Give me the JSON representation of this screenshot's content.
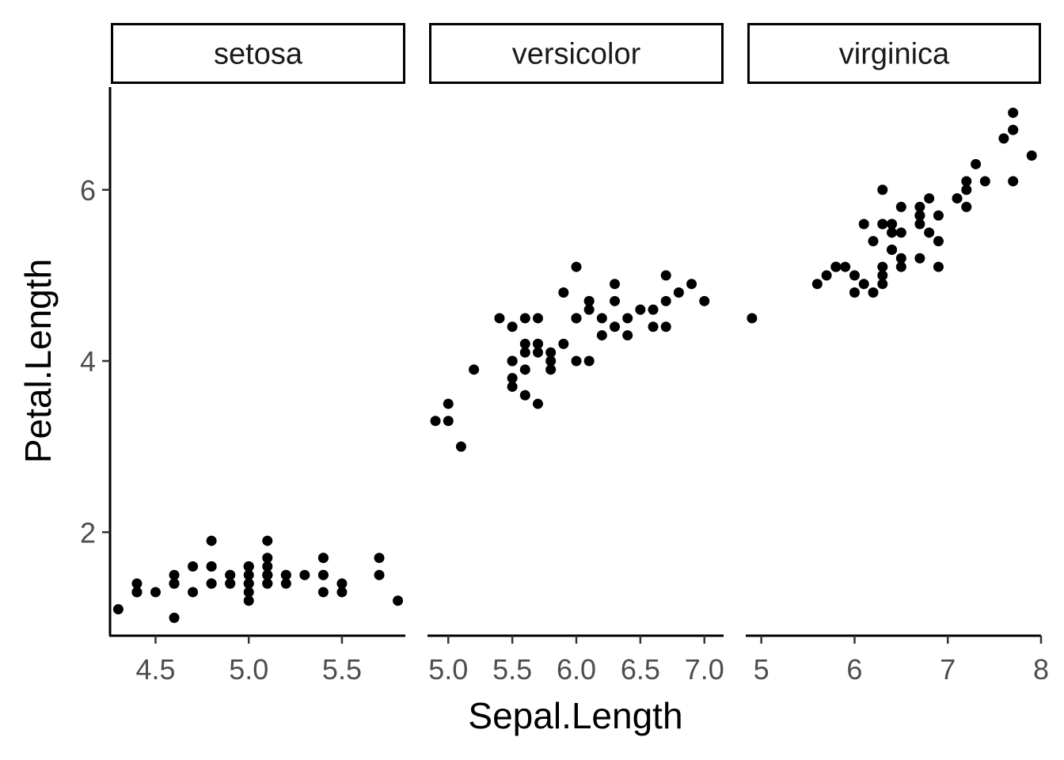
{
  "chart_data": {
    "type": "scatter",
    "xlabel": "Sepal.Length",
    "ylabel": "Petal.Length",
    "ylim": [
      0.8,
      7.2
    ],
    "y_ticks": [
      2,
      4,
      6
    ],
    "point_color": "#000000",
    "facets": [
      {
        "name": "setosa",
        "xlim": [
          4.26,
          5.84
        ],
        "x_ticks": [
          "4.5",
          "5.0",
          "5.5"
        ],
        "points": [
          [
            5.1,
            1.4
          ],
          [
            4.9,
            1.4
          ],
          [
            4.7,
            1.3
          ],
          [
            4.6,
            1.5
          ],
          [
            5.0,
            1.4
          ],
          [
            5.4,
            1.7
          ],
          [
            4.6,
            1.4
          ],
          [
            5.0,
            1.5
          ],
          [
            4.4,
            1.4
          ],
          [
            4.9,
            1.5
          ],
          [
            5.4,
            1.5
          ],
          [
            4.8,
            1.6
          ],
          [
            4.8,
            1.4
          ],
          [
            4.3,
            1.1
          ],
          [
            5.8,
            1.2
          ],
          [
            5.7,
            1.5
          ],
          [
            5.4,
            1.3
          ],
          [
            5.1,
            1.4
          ],
          [
            5.7,
            1.7
          ],
          [
            5.1,
            1.5
          ],
          [
            5.4,
            1.7
          ],
          [
            5.1,
            1.5
          ],
          [
            4.6,
            1.0
          ],
          [
            5.1,
            1.7
          ],
          [
            4.8,
            1.9
          ],
          [
            5.0,
            1.6
          ],
          [
            5.0,
            1.6
          ],
          [
            5.2,
            1.5
          ],
          [
            5.2,
            1.4
          ],
          [
            4.7,
            1.6
          ],
          [
            4.8,
            1.6
          ],
          [
            5.4,
            1.5
          ],
          [
            5.2,
            1.5
          ],
          [
            5.5,
            1.4
          ],
          [
            4.9,
            1.5
          ],
          [
            5.0,
            1.2
          ],
          [
            5.5,
            1.3
          ],
          [
            4.9,
            1.4
          ],
          [
            4.4,
            1.3
          ],
          [
            5.1,
            1.5
          ],
          [
            5.0,
            1.3
          ],
          [
            4.5,
            1.3
          ],
          [
            4.4,
            1.3
          ],
          [
            5.0,
            1.6
          ],
          [
            5.1,
            1.9
          ],
          [
            4.8,
            1.4
          ],
          [
            5.1,
            1.6
          ],
          [
            4.6,
            1.4
          ],
          [
            5.3,
            1.5
          ],
          [
            5.0,
            1.4
          ]
        ]
      },
      {
        "name": "versicolor",
        "xlim": [
          4.85,
          7.15
        ],
        "x_ticks": [
          "5.0",
          "5.5",
          "6.0",
          "6.5",
          "7.0"
        ],
        "points": [
          [
            7.0,
            4.7
          ],
          [
            6.4,
            4.5
          ],
          [
            6.9,
            4.9
          ],
          [
            5.5,
            4.0
          ],
          [
            6.5,
            4.6
          ],
          [
            5.7,
            4.5
          ],
          [
            6.3,
            4.7
          ],
          [
            4.9,
            3.3
          ],
          [
            6.6,
            4.6
          ],
          [
            5.2,
            3.9
          ],
          [
            5.0,
            3.5
          ],
          [
            5.9,
            4.2
          ],
          [
            6.0,
            4.0
          ],
          [
            6.1,
            4.7
          ],
          [
            5.6,
            3.6
          ],
          [
            6.7,
            4.4
          ],
          [
            5.6,
            4.5
          ],
          [
            5.8,
            4.1
          ],
          [
            6.2,
            4.5
          ],
          [
            5.6,
            3.9
          ],
          [
            5.9,
            4.8
          ],
          [
            6.1,
            4.0
          ],
          [
            6.3,
            4.9
          ],
          [
            6.1,
            4.7
          ],
          [
            6.4,
            4.3
          ],
          [
            6.6,
            4.4
          ],
          [
            6.8,
            4.8
          ],
          [
            6.7,
            5.0
          ],
          [
            6.0,
            4.5
          ],
          [
            5.7,
            3.5
          ],
          [
            5.5,
            3.8
          ],
          [
            5.5,
            3.7
          ],
          [
            5.8,
            3.9
          ],
          [
            6.0,
            5.1
          ],
          [
            5.4,
            4.5
          ],
          [
            6.0,
            4.5
          ],
          [
            6.7,
            4.7
          ],
          [
            6.3,
            4.4
          ],
          [
            5.6,
            4.1
          ],
          [
            5.5,
            4.0
          ],
          [
            5.5,
            4.4
          ],
          [
            6.1,
            4.6
          ],
          [
            5.8,
            4.0
          ],
          [
            5.0,
            3.3
          ],
          [
            5.6,
            4.2
          ],
          [
            5.7,
            4.2
          ],
          [
            5.7,
            4.2
          ],
          [
            6.2,
            4.3
          ],
          [
            5.1,
            3.0
          ],
          [
            5.7,
            4.1
          ]
        ]
      },
      {
        "name": "virginica",
        "xlim": [
          4.85,
          8.0
        ],
        "x_ticks": [
          "5",
          "6",
          "7",
          "8"
        ],
        "points": [
          [
            6.3,
            6.0
          ],
          [
            5.8,
            5.1
          ],
          [
            7.1,
            5.9
          ],
          [
            6.3,
            5.6
          ],
          [
            6.5,
            5.8
          ],
          [
            7.6,
            6.6
          ],
          [
            4.9,
            4.5
          ],
          [
            7.3,
            6.3
          ],
          [
            6.7,
            5.8
          ],
          [
            7.2,
            6.1
          ],
          [
            6.5,
            5.1
          ],
          [
            6.4,
            5.3
          ],
          [
            6.8,
            5.5
          ],
          [
            5.7,
            5.0
          ],
          [
            5.8,
            5.1
          ],
          [
            6.4,
            5.3
          ],
          [
            6.5,
            5.5
          ],
          [
            7.7,
            6.7
          ],
          [
            7.7,
            6.9
          ],
          [
            6.0,
            5.0
          ],
          [
            6.9,
            5.7
          ],
          [
            5.6,
            4.9
          ],
          [
            7.7,
            6.7
          ],
          [
            6.3,
            4.9
          ],
          [
            6.7,
            5.7
          ],
          [
            7.2,
            6.0
          ],
          [
            6.2,
            4.8
          ],
          [
            6.1,
            4.9
          ],
          [
            6.4,
            5.6
          ],
          [
            7.2,
            5.8
          ],
          [
            7.4,
            6.1
          ],
          [
            7.9,
            6.4
          ],
          [
            6.4,
            5.6
          ],
          [
            6.3,
            5.1
          ],
          [
            6.1,
            5.6
          ],
          [
            7.7,
            6.1
          ],
          [
            6.3,
            5.6
          ],
          [
            6.4,
            5.5
          ],
          [
            6.0,
            4.8
          ],
          [
            6.9,
            5.4
          ],
          [
            6.7,
            5.6
          ],
          [
            6.9,
            5.1
          ],
          [
            5.8,
            5.1
          ],
          [
            6.8,
            5.9
          ],
          [
            6.7,
            5.7
          ],
          [
            6.7,
            5.2
          ],
          [
            6.3,
            5.0
          ],
          [
            6.5,
            5.2
          ],
          [
            6.2,
            5.4
          ],
          [
            5.9,
            5.1
          ]
        ]
      }
    ]
  }
}
